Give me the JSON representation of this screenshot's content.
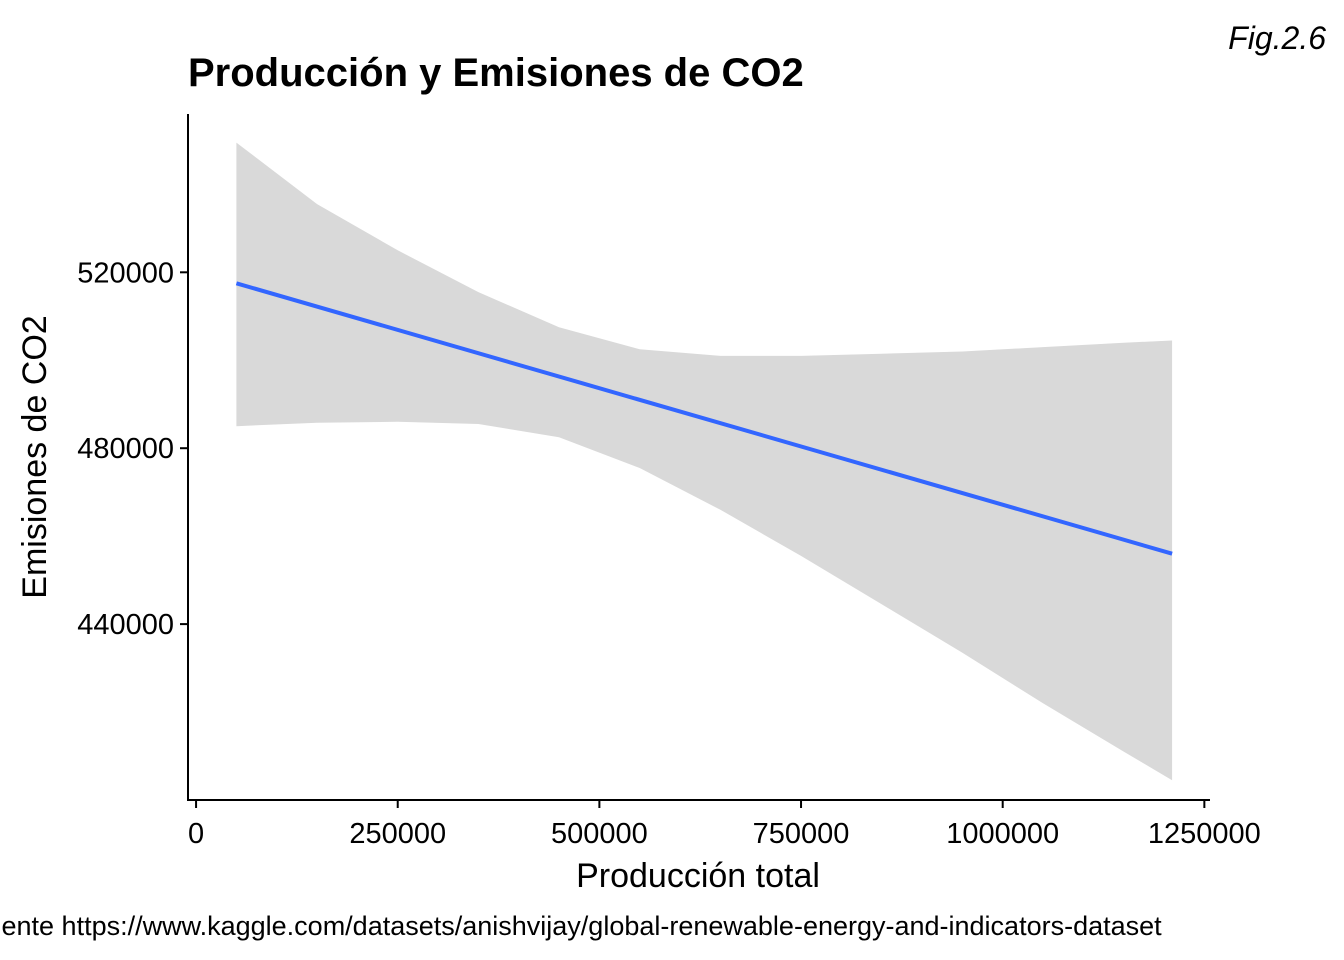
{
  "figure": {
    "tag": "Fig.2.6",
    "caption": "Fuente https://www.kaggle.com/datasets/anishvijay/global-renewable-energy-and-indicators-dataset"
  },
  "chart_data": {
    "type": "line",
    "title": "Producción y Emisiones de CO2",
    "xlabel": "Producción total",
    "ylabel": "Emisiones de CO2",
    "xlim": [
      -10000,
      1257000
    ],
    "ylim": [
      400000,
      556000
    ],
    "x_ticks": [
      0,
      250000,
      500000,
      750000,
      1000000,
      1250000
    ],
    "x_tick_labels": [
      "0",
      "250000",
      "500000",
      "750000",
      "1000000",
      "1250000"
    ],
    "y_ticks": [
      440000,
      480000,
      520000
    ],
    "y_tick_labels": [
      "440000",
      "480000",
      "520000"
    ],
    "grid": false,
    "legend": "none",
    "line_color": "#3366FF",
    "band_color": "#D9D9D9",
    "series": [
      {
        "x": [
          50000,
          1210000
        ],
        "y": [
          517500,
          456000
        ]
      }
    ],
    "confidence_band": {
      "x": [
        50000,
        150000,
        250000,
        350000,
        450000,
        550000,
        650000,
        750000,
        850000,
        950000,
        1050000,
        1150000,
        1210000
      ],
      "upper": [
        549500,
        535500,
        525000,
        515500,
        507500,
        502500,
        501000,
        501000,
        501500,
        502000,
        503000,
        504000,
        504500
      ],
      "lower": [
        485000,
        485800,
        486000,
        485500,
        482500,
        475500,
        466000,
        455500,
        444500,
        433500,
        422000,
        411000,
        404500
      ]
    }
  }
}
